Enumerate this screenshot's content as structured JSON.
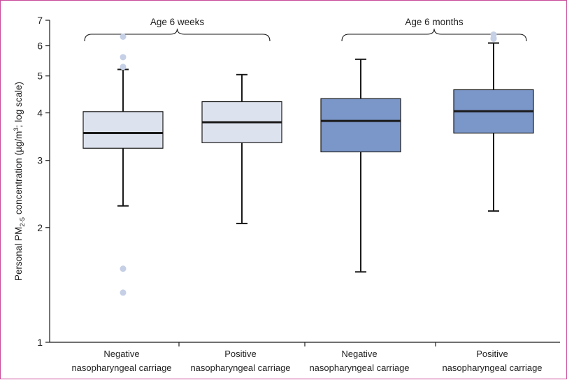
{
  "chart_data": {
    "type": "box",
    "ylabel": {
      "prefix": "Personal PM",
      "subscript": "2·5",
      "middle": " concentration (µg/m",
      "superscript": "3",
      "suffix": "; log scale)"
    },
    "y_scale": "log",
    "ylim": [
      1,
      7
    ],
    "yticks": [
      "1",
      "2",
      "3",
      "4",
      "5",
      "6",
      "7"
    ],
    "grid": false,
    "groups": [
      {
        "label": "Age 6 weeks",
        "box_indices": [
          0,
          1
        ]
      },
      {
        "label": "Age 6 months",
        "box_indices": [
          2,
          3
        ]
      }
    ],
    "boxes": [
      {
        "label_line1": "Negative",
        "label_line2": "nasopharyngeal carriage",
        "whisker_low": 2.28,
        "q1": 3.23,
        "median": 3.54,
        "q3": 4.03,
        "whisker_high": 5.2,
        "outliers": [
          6.34,
          5.6,
          5.28,
          1.56,
          1.35
        ],
        "fill": "#dde3ee"
      },
      {
        "label_line1": "Positive",
        "label_line2": "nasopharyngeal carriage",
        "whisker_low": 2.05,
        "q1": 3.34,
        "median": 3.78,
        "q3": 4.28,
        "whisker_high": 5.04,
        "outliers": [],
        "fill": "#dde3ee"
      },
      {
        "label_line1": "Negative",
        "label_line2": "nasopharyngeal carriage",
        "whisker_low": 1.53,
        "q1": 3.16,
        "median": 3.81,
        "q3": 4.36,
        "whisker_high": 5.53,
        "outliers": [],
        "fill": "#7b96c8"
      },
      {
        "label_line1": "Positive",
        "label_line2": "nasopharyngeal carriage",
        "whisker_low": 2.21,
        "q1": 3.54,
        "median": 4.04,
        "q3": 4.6,
        "whisker_high": 6.1,
        "outliers": [
          6.42,
          6.28,
          6.26
        ],
        "fill": "#7b96c8"
      }
    ],
    "outlier_color": "#c5cfe6",
    "line_color": "#1a1a1a"
  }
}
